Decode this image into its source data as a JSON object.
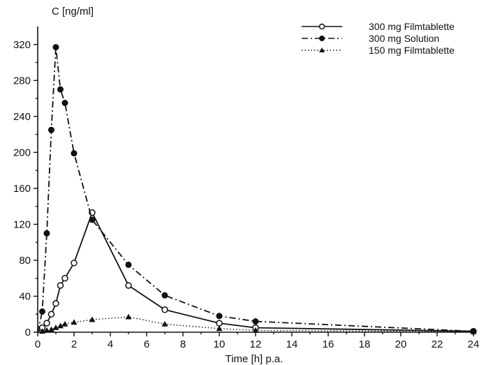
{
  "chart_data": {
    "type": "line",
    "title": "",
    "xlabel": "Time [h] p.a.",
    "ylabel": "C  [ng/ml]",
    "xlim": [
      0,
      24
    ],
    "ylim": [
      0,
      340
    ],
    "xticks": [
      0,
      2,
      4,
      6,
      8,
      10,
      12,
      14,
      16,
      18,
      20,
      22,
      24
    ],
    "yticks": [
      0,
      40,
      80,
      120,
      160,
      200,
      240,
      280,
      320
    ],
    "grid": false,
    "legend_position": "top-right",
    "series": [
      {
        "name": "300 mg Filmtablette",
        "marker": "open-circle",
        "line_style": "solid",
        "color": "#111111",
        "x": [
          0,
          0.25,
          0.5,
          0.75,
          1,
          1.25,
          1.5,
          2,
          3,
          5,
          7,
          10,
          12,
          24
        ],
        "y": [
          0,
          5,
          10,
          20,
          32,
          52,
          60,
          77,
          133,
          52,
          25,
          10,
          5,
          1
        ]
      },
      {
        "name": "300 mg Solution",
        "marker": "filled-circle",
        "line_style": "dash-dot",
        "color": "#111111",
        "x": [
          0,
          0.25,
          0.5,
          0.75,
          1,
          1.25,
          1.5,
          2,
          3,
          5,
          7,
          10,
          12,
          24
        ],
        "y": [
          0,
          23,
          110,
          225,
          317,
          270,
          255,
          199,
          125,
          75,
          41,
          18,
          12,
          1
        ]
      },
      {
        "name": "150 mg Filmtablette",
        "marker": "filled-triangle",
        "line_style": "dotted",
        "color": "#111111",
        "x": [
          0,
          0.25,
          0.5,
          0.75,
          1,
          1.25,
          1.5,
          2,
          3,
          5,
          7,
          10,
          12,
          24
        ],
        "y": [
          0,
          1,
          2,
          3,
          5,
          7,
          9,
          11,
          14,
          17,
          9,
          4,
          2,
          0.5
        ]
      }
    ]
  }
}
